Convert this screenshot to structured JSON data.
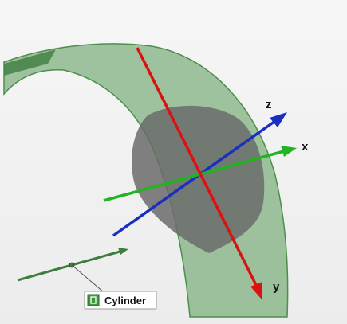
{
  "axes": {
    "z": "z",
    "x": "x",
    "y": "y"
  },
  "feature_label": "Cylinder"
}
